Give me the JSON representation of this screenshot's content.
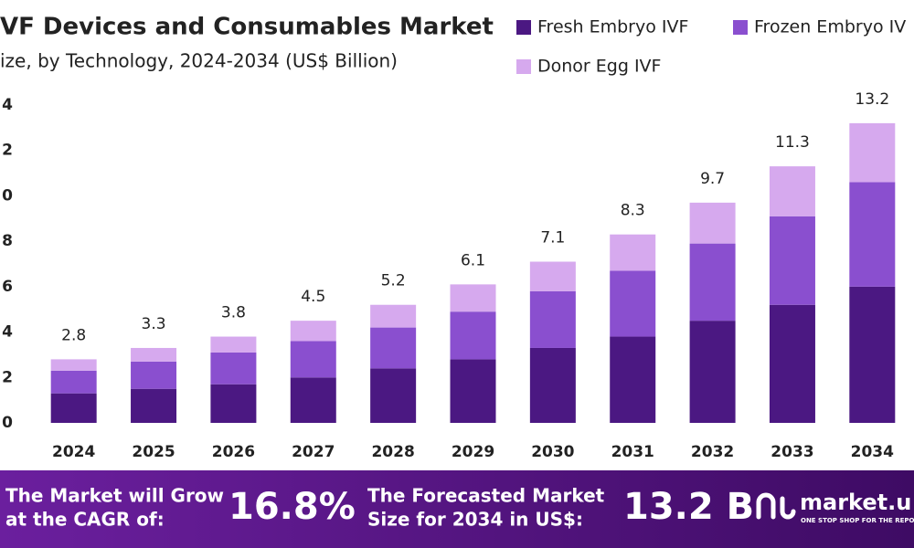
{
  "chart_data": {
    "type": "stacked-bar",
    "title": "VF Devices and Consumables Market",
    "subtitle": "ize, by Technology, 2024-2034 (US$ Billion)",
    "categories": [
      "2024",
      "2025",
      "2026",
      "2027",
      "2028",
      "2029",
      "2030",
      "2031",
      "2032",
      "2033",
      "2034"
    ],
    "series": [
      {
        "name": "Fresh Embryo IVF",
        "color": "#4b1882",
        "values": [
          1.3,
          1.5,
          1.7,
          2.0,
          2.4,
          2.8,
          3.3,
          3.8,
          4.5,
          5.2,
          6.0
        ]
      },
      {
        "name": "Frozen Embryo IV",
        "color": "#8a4fcf",
        "values": [
          1.0,
          1.2,
          1.4,
          1.6,
          1.8,
          2.1,
          2.5,
          2.9,
          3.4,
          3.9,
          4.6
        ]
      },
      {
        "name": "Donor Egg IVF",
        "color": "#d6a9ee",
        "values": [
          0.5,
          0.6,
          0.7,
          0.9,
          1.0,
          1.2,
          1.3,
          1.6,
          1.8,
          2.2,
          2.6
        ]
      }
    ],
    "totals": [
      2.8,
      3.3,
      3.8,
      4.5,
      5.2,
      6.1,
      7.1,
      8.3,
      9.7,
      11.3,
      13.2
    ],
    "ylim": [
      0,
      14
    ],
    "yticks": [
      0,
      2,
      4,
      6,
      8,
      {
        "value": 10,
        "label": "0"
      },
      {
        "value": 12,
        "label": "2"
      },
      {
        "value": 14,
        "label": "4"
      }
    ],
    "grid": false
  },
  "footer": {
    "cagr_text": [
      "The Market will Grow",
      "at the CAGR of:"
    ],
    "cagr": "16.8%",
    "forecast_text": [
      "The Forecasted Market",
      "Size for 2034 in US$:"
    ],
    "forecast": "13.2 B",
    "brand": "market.u",
    "tagline": "ONE STOP SHOP FOR THE REPO"
  }
}
